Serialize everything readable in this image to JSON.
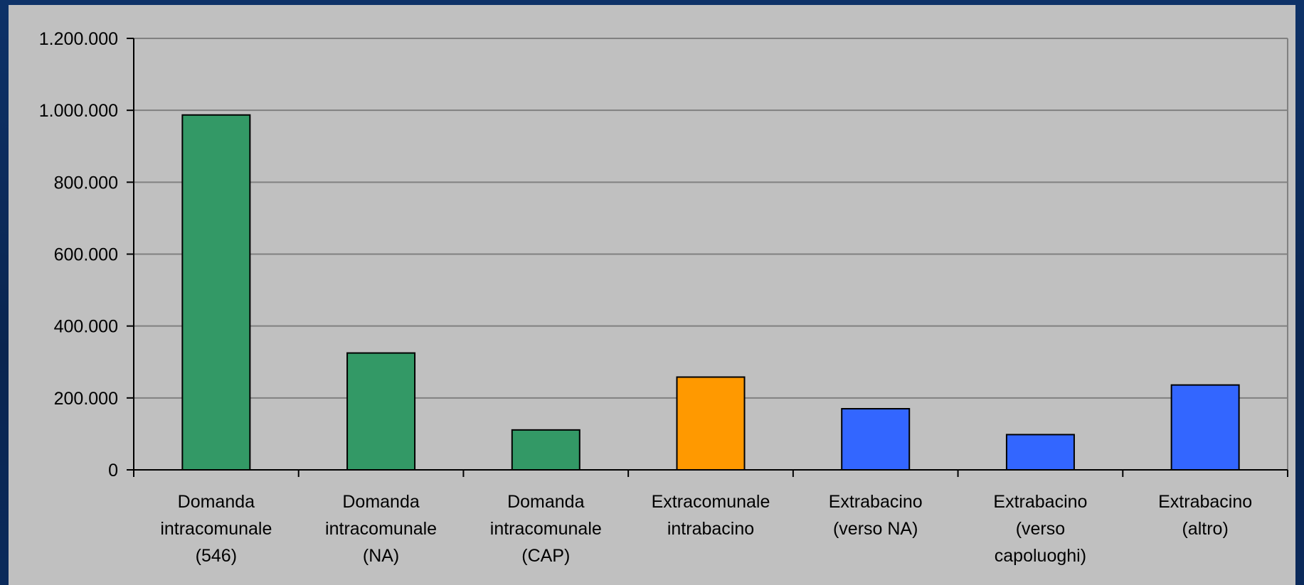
{
  "chart_data": {
    "type": "bar",
    "title": "",
    "xlabel": "",
    "ylabel": "",
    "ylim": [
      0,
      1200000
    ],
    "yticks": [
      0,
      200000,
      400000,
      600000,
      800000,
      1000000,
      1200000
    ],
    "ytick_labels": [
      "0",
      "200.000",
      "400.000",
      "600.000",
      "800.000",
      "1.000.000",
      "1.200.000"
    ],
    "grid": true,
    "legend": "none",
    "categories": [
      [
        "Domanda",
        "intracomunale",
        "(546)"
      ],
      [
        "Domanda",
        "intracomunale",
        "(NA)"
      ],
      [
        "Domanda",
        "intracomunale",
        "(CAP)"
      ],
      [
        "Extracomunale",
        "intrabacino"
      ],
      [
        "Extrabacino",
        "(verso NA)"
      ],
      [
        "Extrabacino",
        "(verso",
        "capoluoghi)"
      ],
      [
        "Extrabacino",
        "(altro)"
      ]
    ],
    "values": [
      987000,
      325000,
      111000,
      258000,
      170000,
      98000,
      236000
    ],
    "bar_colors": [
      "#339966",
      "#339966",
      "#339966",
      "#FF9900",
      "#3366FF",
      "#3366FF",
      "#3366FF"
    ]
  },
  "colors": {
    "plot_background": "#c0c0c0",
    "gridline": "#808080",
    "frame_background": "#0b2a5b"
  }
}
